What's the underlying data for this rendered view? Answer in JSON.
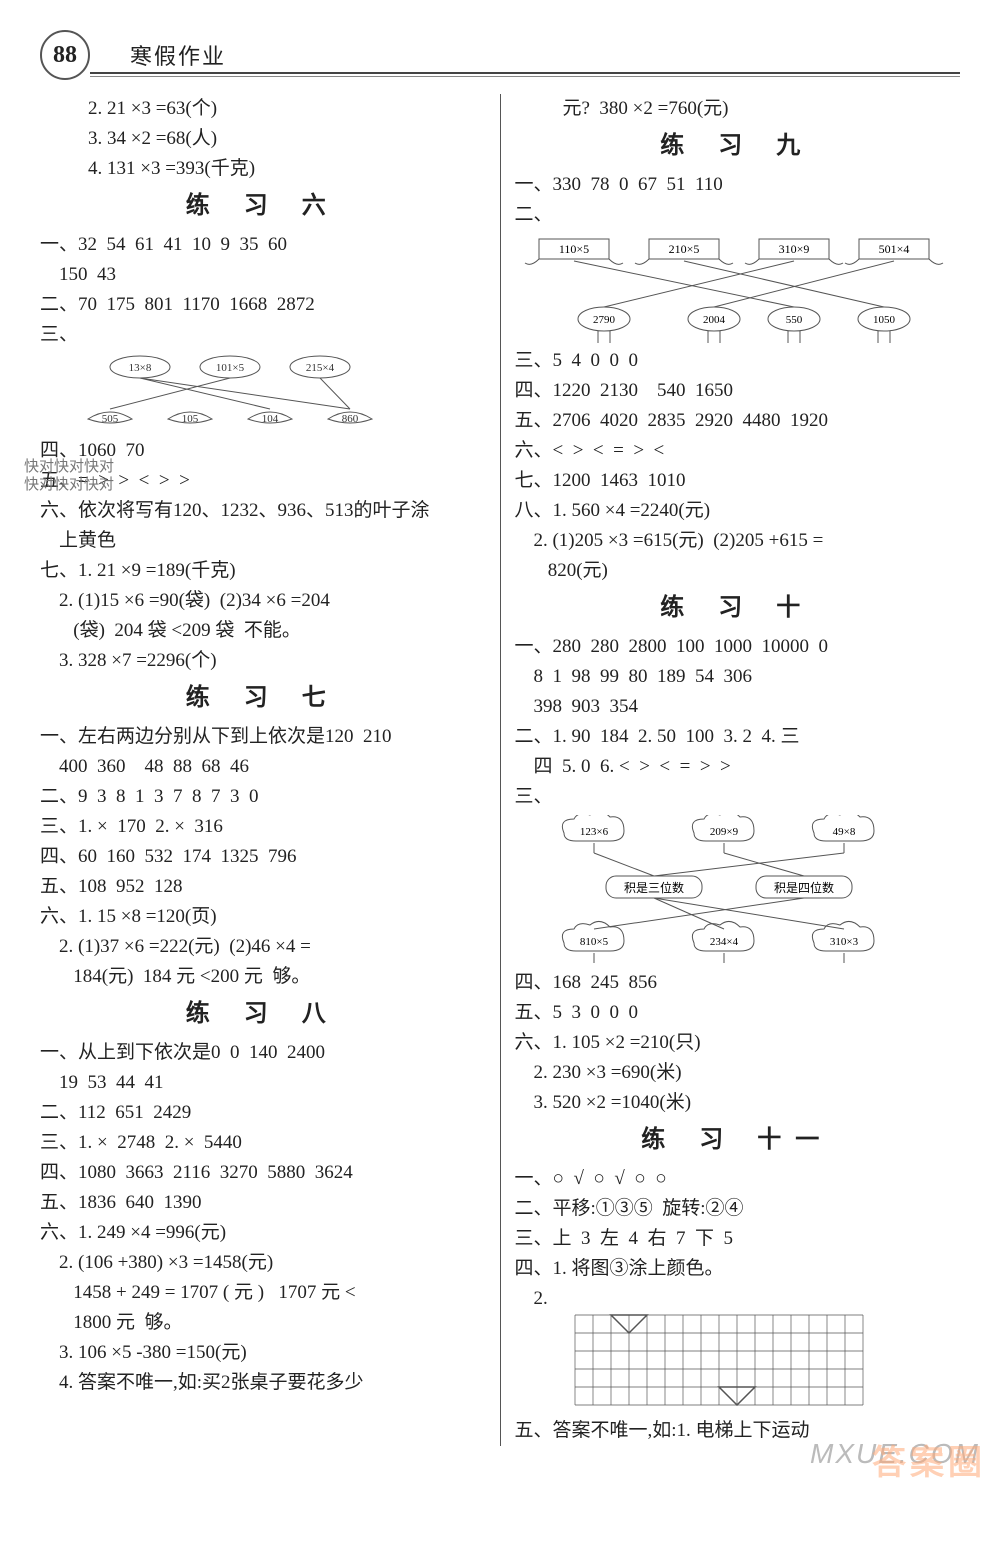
{
  "page_number": "88",
  "header_title": "寒假作业",
  "watermark_side_1": "快对快对快对",
  "watermark_side_2": "快对快对快对",
  "watermark_corner_1": "MXUE.COM",
  "watermark_corner_2": "答案圈",
  "left": {
    "pre": [
      "2. 21 ×3 =63(个)",
      "3. 34 ×2 =68(人)",
      "4. 131 ×3 =393(千克)"
    ],
    "ex6_title": "练 习 六",
    "ex6_lines": [
      "一、32  54  61  41  10  9  35  60",
      "    150  43",
      "二、70  175  801  1170  1668  2872",
      "三、"
    ],
    "ex6_diagram": {
      "top_labels": [
        "13×8",
        "101×5",
        "215×4"
      ],
      "bottom_labels": [
        "505",
        "105",
        "104",
        "860"
      ],
      "edges": [
        [
          0,
          3
        ],
        [
          0,
          2
        ],
        [
          1,
          0
        ],
        [
          2,
          3
        ]
      ],
      "top_color": "#777",
      "line_color": "#555"
    },
    "ex6_after": [
      "四、1060  70",
      "五、=  >  >  <  >  >",
      "六、依次将写有120、1232、936、513的叶子涂",
      "    上黄色",
      "七、1. 21 ×9 =189(千克)",
      "    2. (1)15 ×6 =90(袋)  (2)34 ×6 =204",
      "       (袋)  204 袋 <209 袋  不能。",
      "    3. 328 ×7 =2296(个)"
    ],
    "ex7_title": "练 习 七",
    "ex7_lines": [
      "一、左右两边分别从下到上依次是120  210",
      "    400  360    48  88  68  46",
      "二、9  3  8  1  3  7  8  7  3  0",
      "三、1. ×  170  2. ×  316",
      "四、60  160  532  174  1325  796",
      "五、108  952  128",
      "六、1. 15 ×8 =120(页)",
      "    2. (1)37 ×6 =222(元)  (2)46 ×4 =",
      "       184(元)  184 元 <200 元  够。"
    ],
    "ex8_title": "练 习 八",
    "ex8_lines": [
      "一、从上到下依次是0  0  140  2400",
      "    19  53  44  41",
      "二、112  651  2429",
      "三、1. ×  2748  2. ×  5440",
      "四、1080  3663  2116  3270  5880  3624",
      "五、1836  640  1390",
      "六、1. 249 ×4 =996(元)",
      "    2. (106 +380) ×3 =1458(元)",
      "       1458 + 249 = 1707 ( 元 )   1707 元 <",
      "       1800 元  够。",
      "    3. 106 ×5 -380 =150(元)",
      "    4. 答案不唯一,如:买2张桌子要花多少"
    ]
  },
  "right": {
    "pre": [
      "元?  380 ×2 =760(元)"
    ],
    "ex9_title": "练 习 九",
    "ex9_lines_a": [
      "一、330  78  0  67  51  110",
      "二、"
    ],
    "ex9_diagram": {
      "top_labels": [
        "110×5",
        "210×5",
        "310×9",
        "501×4"
      ],
      "bottom_labels": [
        "2790",
        "2004",
        "550",
        "1050"
      ],
      "edges": [
        [
          0,
          2
        ],
        [
          1,
          3
        ],
        [
          2,
          0
        ],
        [
          3,
          1
        ]
      ],
      "line_color": "#555"
    },
    "ex9_lines_b": [
      "三、5  4  0  0  0",
      "四、1220  2130    540  1650",
      "五、2706  4020  2835  2920  4480  1920",
      "六、<  >  <  =  >  <",
      "七、1200  1463  1010",
      "八、1. 560 ×4 =2240(元)",
      "    2. (1)205 ×3 =615(元)  (2)205 +615 =",
      "       820(元)"
    ],
    "ex10_title": "练 习 十",
    "ex10_lines_a": [
      "一、280  280  2800  100  1000  10000  0",
      "    8  1  98  99  80  189  54  306",
      "    398  903  354",
      "二、1. 90  184  2. 50  100  3. 2  4. 三",
      "    四  5. 0  6. <  >  <  =  >  >",
      "三、"
    ],
    "ex10_diagram": {
      "top_labels": [
        "123×6",
        "209×9",
        "49×8"
      ],
      "mid_labels": [
        "积是三位数",
        "积是四位数"
      ],
      "bottom_labels": [
        "810×5",
        "234×4",
        "310×3"
      ],
      "edges_top": [
        [
          0,
          0
        ],
        [
          1,
          1
        ],
        [
          2,
          0
        ]
      ],
      "edges_bot": [
        [
          0,
          1
        ],
        [
          1,
          0
        ],
        [
          2,
          0
        ]
      ],
      "line_color": "#555"
    },
    "ex10_lines_b": [
      "四、168  245  856",
      "五、5  3  0  0  0",
      "六、1. 105 ×2 =210(只)",
      "    2. 230 ×3 =690(米)",
      "    3. 520 ×2 =1040(米)"
    ],
    "ex11_title": "练 习 十一",
    "ex11_lines_a": [
      "一、○  √  ○  √  ○  ○",
      "二、平移:①③⑤  旋转:②④",
      "三、上  3  左  4  右  7  下  5",
      "四、1. 将图③涂上颜色。",
      "    2."
    ],
    "ex11_grid": {
      "cols": 16,
      "rows": 5,
      "cell": 18,
      "stroke": "#555",
      "shapes": [
        {
          "type": "tri",
          "pts": [
            [
              2,
              0
            ],
            [
              4,
              0
            ],
            [
              3,
              1
            ]
          ]
        },
        {
          "type": "tri",
          "pts": [
            [
              8,
              4
            ],
            [
              10,
              4
            ],
            [
              9,
              5
            ]
          ]
        }
      ]
    },
    "ex11_lines_b": [
      "五、答案不唯一,如:1. 电梯上下运动"
    ]
  }
}
